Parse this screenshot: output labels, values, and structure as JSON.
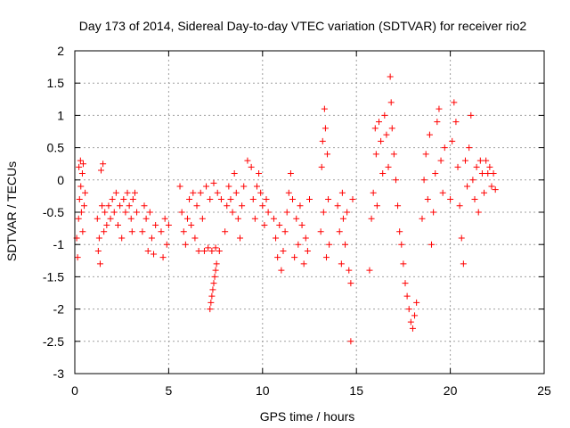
{
  "chart_data": {
    "type": "scatter",
    "title": "Day 173 of 2014, Sidereal Day-to-day VTEC variation (SDTVAR) for receiver rio2",
    "xlabel": "GPS time / hours",
    "ylabel": "SDTVAR / TECUs",
    "xlim": [
      0,
      25
    ],
    "ylim": [
      -3,
      2
    ],
    "xticks": [
      "0",
      "5",
      "10",
      "15",
      "20",
      "25"
    ],
    "yticks": [
      "2",
      "1.5",
      "1",
      "0.5",
      "0",
      "-0.5",
      "-1",
      "-1.5",
      "-2",
      "-2.5",
      "-3"
    ],
    "grid": true,
    "marker": "+",
    "color": "#ff0000",
    "series": [
      {
        "name": "rio2",
        "points": [
          [
            0.1,
            -0.9
          ],
          [
            0.15,
            -1.2
          ],
          [
            0.2,
            -0.6
          ],
          [
            0.22,
            0.2
          ],
          [
            0.25,
            -0.3
          ],
          [
            0.3,
            0.3
          ],
          [
            0.32,
            -0.1
          ],
          [
            0.35,
            -0.5
          ],
          [
            0.4,
            0.1
          ],
          [
            0.42,
            -0.8
          ],
          [
            0.45,
            0.25
          ],
          [
            0.5,
            -0.4
          ],
          [
            0.55,
            -0.2
          ],
          [
            1.2,
            -0.6
          ],
          [
            1.25,
            -1.1
          ],
          [
            1.3,
            -0.9
          ],
          [
            1.35,
            -1.3
          ],
          [
            1.4,
            0.15
          ],
          [
            1.45,
            -0.4
          ],
          [
            1.5,
            0.25
          ],
          [
            1.55,
            -0.8
          ],
          [
            1.6,
            -0.5
          ],
          [
            1.7,
            -0.7
          ],
          [
            1.8,
            -0.4
          ],
          [
            1.9,
            -0.6
          ],
          [
            2.0,
            -0.3
          ],
          [
            2.1,
            -0.5
          ],
          [
            2.2,
            -0.2
          ],
          [
            2.3,
            -0.7
          ],
          [
            2.4,
            -0.4
          ],
          [
            2.5,
            -0.9
          ],
          [
            2.6,
            -0.3
          ],
          [
            2.7,
            -0.5
          ],
          [
            2.8,
            -0.2
          ],
          [
            2.9,
            -0.4
          ],
          [
            3.0,
            -0.6
          ],
          [
            3.05,
            -0.8
          ],
          [
            3.1,
            -0.3
          ],
          [
            3.2,
            -0.2
          ],
          [
            3.3,
            -0.5
          ],
          [
            3.6,
            -0.8
          ],
          [
            3.7,
            -0.4
          ],
          [
            3.8,
            -0.6
          ],
          [
            3.9,
            -1.1
          ],
          [
            4.0,
            -0.5
          ],
          [
            4.1,
            -0.9
          ],
          [
            4.2,
            -1.15
          ],
          [
            4.3,
            -0.7
          ],
          [
            4.6,
            -0.8
          ],
          [
            4.7,
            -1.2
          ],
          [
            4.8,
            -0.6
          ],
          [
            4.9,
            -1.0
          ],
          [
            5.0,
            -0.7
          ],
          [
            5.6,
            -0.1
          ],
          [
            5.7,
            -0.5
          ],
          [
            5.8,
            -0.8
          ],
          [
            5.9,
            -1.0
          ],
          [
            6.0,
            -0.6
          ],
          [
            6.1,
            -0.3
          ],
          [
            6.2,
            -0.7
          ],
          [
            6.3,
            -0.2
          ],
          [
            6.4,
            -0.9
          ],
          [
            6.5,
            -0.4
          ],
          [
            6.6,
            -1.1
          ],
          [
            6.7,
            -0.2
          ],
          [
            6.8,
            -0.6
          ],
          [
            6.9,
            -1.1
          ],
          [
            7.0,
            -0.1
          ],
          [
            7.1,
            -1.05
          ],
          [
            7.2,
            -0.3
          ],
          [
            7.3,
            -1.1
          ],
          [
            7.4,
            -0.05
          ],
          [
            7.5,
            -1.05
          ],
          [
            7.6,
            -0.2
          ],
          [
            7.7,
            -1.1
          ],
          [
            7.8,
            -0.3
          ],
          [
            7.2,
            -2.0
          ],
          [
            7.25,
            -1.9
          ],
          [
            7.3,
            -1.8
          ],
          [
            7.35,
            -1.7
          ],
          [
            7.4,
            -1.6
          ],
          [
            7.45,
            -1.5
          ],
          [
            7.5,
            -1.4
          ],
          [
            7.55,
            -1.3
          ],
          [
            8.0,
            -0.8
          ],
          [
            8.1,
            -0.4
          ],
          [
            8.2,
            -0.1
          ],
          [
            8.3,
            -0.3
          ],
          [
            8.4,
            -0.5
          ],
          [
            8.5,
            0.1
          ],
          [
            8.6,
            -0.2
          ],
          [
            8.7,
            -0.6
          ],
          [
            8.8,
            -0.9
          ],
          [
            8.9,
            -0.4
          ],
          [
            9.0,
            -0.1
          ],
          [
            9.2,
            0.3
          ],
          [
            9.4,
            0.2
          ],
          [
            9.5,
            -0.3
          ],
          [
            9.6,
            -0.6
          ],
          [
            9.7,
            -0.1
          ],
          [
            9.8,
            0.1
          ],
          [
            9.9,
            -0.2
          ],
          [
            10.0,
            -0.4
          ],
          [
            10.1,
            -0.7
          ],
          [
            10.2,
            -0.3
          ],
          [
            10.3,
            -0.5
          ],
          [
            10.6,
            -0.6
          ],
          [
            10.7,
            -0.9
          ],
          [
            10.8,
            -1.2
          ],
          [
            10.9,
            -0.7
          ],
          [
            11.0,
            -1.4
          ],
          [
            11.1,
            -1.1
          ],
          [
            11.2,
            -0.8
          ],
          [
            11.3,
            -0.5
          ],
          [
            11.4,
            -0.2
          ],
          [
            11.5,
            0.1
          ],
          [
            11.6,
            -0.3
          ],
          [
            11.7,
            -1.2
          ],
          [
            11.8,
            -0.6
          ],
          [
            11.9,
            -1.0
          ],
          [
            12.0,
            -0.4
          ],
          [
            12.1,
            -0.7
          ],
          [
            12.2,
            -1.3
          ],
          [
            12.3,
            -0.9
          ],
          [
            12.4,
            -1.1
          ],
          [
            12.5,
            -0.3
          ],
          [
            13.1,
            -0.8
          ],
          [
            13.15,
            0.2
          ],
          [
            13.2,
            0.6
          ],
          [
            13.25,
            -0.5
          ],
          [
            13.3,
            1.1
          ],
          [
            13.35,
            0.8
          ],
          [
            13.4,
            -1.2
          ],
          [
            13.45,
            0.4
          ],
          [
            13.5,
            -0.3
          ],
          [
            13.55,
            -1.0
          ],
          [
            14.0,
            -0.4
          ],
          [
            14.1,
            -0.8
          ],
          [
            14.2,
            -1.3
          ],
          [
            14.25,
            -0.2
          ],
          [
            14.3,
            -0.6
          ],
          [
            14.4,
            -1.0
          ],
          [
            14.5,
            -0.5
          ],
          [
            14.6,
            -1.4
          ],
          [
            14.7,
            -1.6
          ],
          [
            14.7,
            -2.5
          ],
          [
            14.8,
            -0.3
          ],
          [
            15.7,
            -1.4
          ],
          [
            15.8,
            -0.6
          ],
          [
            15.9,
            -0.2
          ],
          [
            16.0,
            0.8
          ],
          [
            16.05,
            0.4
          ],
          [
            16.1,
            -0.4
          ],
          [
            16.2,
            0.9
          ],
          [
            16.3,
            0.6
          ],
          [
            16.4,
            0.1
          ],
          [
            16.5,
            1.0
          ],
          [
            16.6,
            0.7
          ],
          [
            16.7,
            0.2
          ],
          [
            16.8,
            1.6
          ],
          [
            16.85,
            1.2
          ],
          [
            16.9,
            0.8
          ],
          [
            17.0,
            0.4
          ],
          [
            17.1,
            0.0
          ],
          [
            17.2,
            -0.4
          ],
          [
            17.3,
            -0.8
          ],
          [
            17.4,
            -1.0
          ],
          [
            17.5,
            -1.3
          ],
          [
            17.6,
            -1.6
          ],
          [
            17.7,
            -1.8
          ],
          [
            17.8,
            -2.0
          ],
          [
            17.9,
            -2.2
          ],
          [
            18.0,
            -2.3
          ],
          [
            18.1,
            -2.1
          ],
          [
            18.2,
            -1.9
          ],
          [
            18.5,
            -0.6
          ],
          [
            18.6,
            0.0
          ],
          [
            18.7,
            0.4
          ],
          [
            18.8,
            -0.3
          ],
          [
            18.9,
            0.7
          ],
          [
            19.0,
            -1.0
          ],
          [
            19.1,
            -0.5
          ],
          [
            19.2,
            0.1
          ],
          [
            19.3,
            0.9
          ],
          [
            19.4,
            1.1
          ],
          [
            19.5,
            0.3
          ],
          [
            19.6,
            -0.2
          ],
          [
            19.7,
            0.5
          ],
          [
            20.0,
            -0.3
          ],
          [
            20.1,
            0.6
          ],
          [
            20.2,
            1.2
          ],
          [
            20.3,
            0.9
          ],
          [
            20.4,
            0.2
          ],
          [
            20.5,
            -0.4
          ],
          [
            20.6,
            -0.9
          ],
          [
            20.7,
            -1.3
          ],
          [
            20.8,
            0.3
          ],
          [
            20.9,
            -0.1
          ],
          [
            21.0,
            0.5
          ],
          [
            21.1,
            1.0
          ],
          [
            21.2,
            0.0
          ],
          [
            21.3,
            -0.3
          ],
          [
            21.4,
            0.2
          ],
          [
            21.5,
            -0.5
          ],
          [
            21.6,
            0.3
          ],
          [
            21.7,
            0.1
          ],
          [
            21.8,
            -0.2
          ],
          [
            21.9,
            0.3
          ],
          [
            22.0,
            0.1
          ],
          [
            22.1,
            0.2
          ],
          [
            22.2,
            -0.1
          ],
          [
            22.3,
            0.1
          ],
          [
            22.4,
            -0.15
          ]
        ]
      }
    ]
  }
}
